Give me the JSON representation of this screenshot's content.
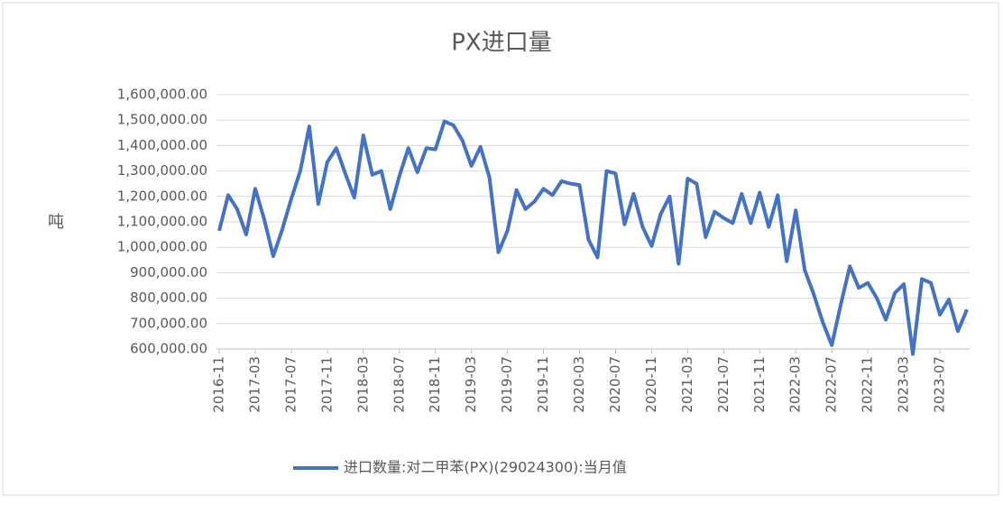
{
  "chart_data": {
    "type": "line",
    "title": "PX进口量",
    "y_label": "吨",
    "categories": [
      "2016-11",
      null,
      null,
      null,
      "2017-03",
      null,
      null,
      null,
      "2017-07",
      null,
      null,
      null,
      "2017-11",
      null,
      null,
      null,
      "2018-03",
      null,
      null,
      null,
      "2018-07",
      null,
      null,
      null,
      "2018-11",
      null,
      null,
      null,
      "2019-03",
      null,
      null,
      null,
      "2019-07",
      null,
      null,
      null,
      "2019-11",
      null,
      null,
      null,
      "2020-03",
      null,
      null,
      null,
      "2020-07",
      null,
      null,
      null,
      "2020-11",
      null,
      null,
      null,
      "2021-03",
      null,
      null,
      null,
      "2021-07",
      null,
      null,
      null,
      "2021-11",
      null,
      null,
      null,
      "2022-03",
      null,
      null,
      null,
      "2022-07",
      null,
      null,
      null,
      "2022-11",
      null,
      null,
      null,
      "2023-03",
      null,
      null,
      null,
      "2023-07",
      null,
      null,
      null
    ],
    "series": [
      {
        "name": "进口数量:对二甲苯(PX)(29024300):当月值",
        "color": "#4472c4",
        "values": [
          1065000,
          1205000,
          1150000,
          1050000,
          1230000,
          1110000,
          965000,
          1070000,
          1190000,
          1300000,
          1475000,
          1170000,
          1335000,
          1390000,
          1290000,
          1195000,
          1440000,
          1285000,
          1300000,
          1150000,
          1280000,
          1390000,
          1295000,
          1390000,
          1385000,
          1495000,
          1480000,
          1420000,
          1320000,
          1395000,
          1275000,
          980000,
          1065000,
          1225000,
          1150000,
          1180000,
          1230000,
          1205000,
          1260000,
          1250000,
          1245000,
          1030000,
          960000,
          1300000,
          1290000,
          1090000,
          1210000,
          1080000,
          1005000,
          1130000,
          1200000,
          935000,
          1270000,
          1250000,
          1040000,
          1140000,
          1115000,
          1095000,
          1210000,
          1095000,
          1215000,
          1080000,
          1205000,
          945000,
          1145000,
          910000,
          815000,
          705000,
          615000,
          775000,
          925000,
          840000,
          860000,
          800000,
          715000,
          820000,
          855000,
          580000,
          875000,
          860000,
          735000,
          795000,
          670000,
          755000
        ]
      }
    ],
    "ylim": [
      600000,
      1600000
    ],
    "yticks": [
      {
        "value": 600000,
        "label": "600,000.00"
      },
      {
        "value": 700000,
        "label": "700,000.00"
      },
      {
        "value": 800000,
        "label": "800,000.00"
      },
      {
        "value": 900000,
        "label": "900,000.00"
      },
      {
        "value": 1000000,
        "label": "1,000,000.00"
      },
      {
        "value": 1100000,
        "label": "1,100,000.00"
      },
      {
        "value": 1200000,
        "label": "1,200,000.00"
      },
      {
        "value": 1300000,
        "label": "1,300,000.00"
      },
      {
        "value": 1400000,
        "label": "1,400,000.00"
      },
      {
        "value": 1500000,
        "label": "1,500,000.00"
      },
      {
        "value": 1600000,
        "label": "1,600,000.00"
      }
    ],
    "grid": true,
    "legend": "bottom"
  }
}
